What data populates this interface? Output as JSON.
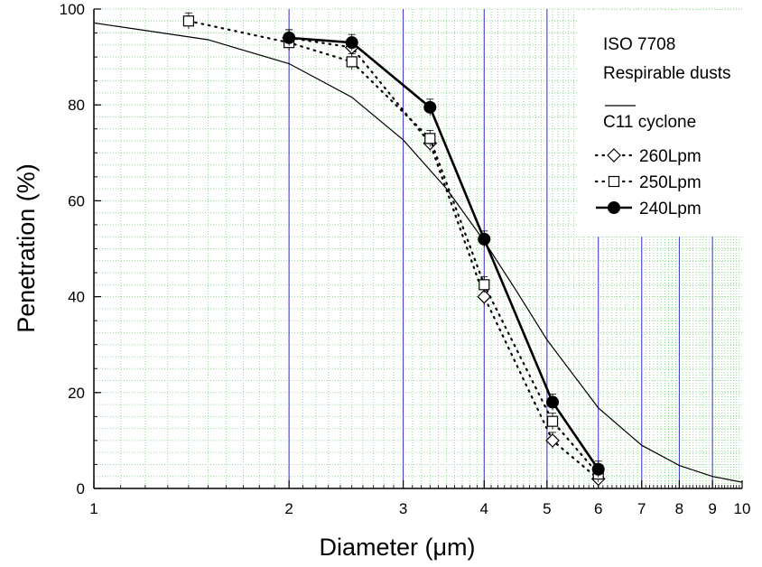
{
  "chart_data": {
    "type": "line",
    "xlabel": "Diameter (μm)",
    "ylabel": "Penetration (%)",
    "x_scale": "log",
    "xlim": [
      1,
      10
    ],
    "ylim": [
      0,
      100
    ],
    "x_ticks": [
      1,
      2,
      3,
      4,
      5,
      6,
      7,
      8,
      9,
      10
    ],
    "y_ticks": [
      0,
      20,
      40,
      60,
      80,
      100
    ],
    "grid": "log minor grid (green dotted) with major vertical lines (blue)",
    "legend": {
      "placement": "top-right",
      "lines": [
        "ISO 7708",
        "Respirable dusts",
        "——",
        "C11 cyclone"
      ]
    },
    "colors": {
      "major_grid": "#4040c8",
      "minor_grid": "#8fdc8f",
      "series": "#000000"
    },
    "series": [
      {
        "name": "ISO 7708 Respirable dusts",
        "style": "thin-solid-line",
        "x": [
          1,
          1.5,
          2,
          2.5,
          3,
          3.5,
          4,
          4.5,
          5,
          6,
          7,
          8,
          9,
          10
        ],
        "y": [
          97.1,
          93.6,
          88.6,
          81.6,
          72.7,
          62.5,
          51.6,
          40.9,
          31.0,
          16.8,
          9.0,
          4.8,
          2.5,
          1.3
        ]
      },
      {
        "name": "260Lpm",
        "style": "dotted-open-diamond",
        "x": [
          2.0,
          2.5,
          3.3,
          4.0,
          5.1,
          6.0
        ],
        "y": [
          94.0,
          92.0,
          72.0,
          40.0,
          10.0,
          2.0
        ]
      },
      {
        "name": "250Lpm",
        "style": "dotted-open-square",
        "x": [
          1.4,
          2.0,
          2.5,
          3.3,
          4.0,
          5.1,
          6.0
        ],
        "y": [
          97.5,
          93.0,
          89.0,
          73.0,
          42.5,
          14.0,
          3.0
        ]
      },
      {
        "name": "240Lpm",
        "style": "solid-filled-circle",
        "x": [
          2.0,
          2.5,
          3.3,
          4.0,
          5.1,
          6.0
        ],
        "y": [
          94.0,
          93.0,
          79.5,
          52.0,
          18.0,
          4.0
        ]
      }
    ]
  }
}
